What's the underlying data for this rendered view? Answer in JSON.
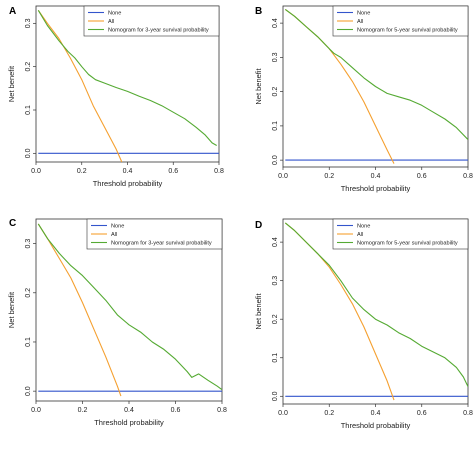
{
  "chart_data": [
    {
      "panel": "A",
      "type": "line",
      "xlabel": "Threshold probability",
      "ylabel": "Net benefit",
      "xlim": [
        0,
        0.8
      ],
      "ylim": [
        -0.02,
        0.34
      ],
      "xticks": [
        0.0,
        0.2,
        0.4,
        0.6,
        0.8
      ],
      "xtick_labels": [
        "0.0",
        "0.2",
        "0.4",
        "0.6",
        "0.8"
      ],
      "yticks": [
        0.0,
        0.1,
        0.2,
        0.3
      ],
      "ytick_labels": [
        "0.0",
        "0.1",
        "0.2",
        "0.3"
      ],
      "legend_position": "top-right",
      "series": [
        {
          "name": "None",
          "color": "#3355cc",
          "x": [
            0.01,
            0.8
          ],
          "y": [
            0.0,
            0.0
          ]
        },
        {
          "name": "All",
          "color": "#f5a030",
          "x": [
            0.01,
            0.05,
            0.1,
            0.15,
            0.2,
            0.25,
            0.3,
            0.35,
            0.375
          ],
          "y": [
            0.33,
            0.3,
            0.265,
            0.22,
            0.17,
            0.11,
            0.06,
            0.01,
            -0.02
          ]
        },
        {
          "name": "Nomogram for 3-year survival probability",
          "color": "#55aa33",
          "x": [
            0.01,
            0.05,
            0.1,
            0.14,
            0.17,
            0.2,
            0.23,
            0.26,
            0.3,
            0.35,
            0.4,
            0.45,
            0.5,
            0.55,
            0.6,
            0.65,
            0.7,
            0.74,
            0.77,
            0.79
          ],
          "y": [
            0.33,
            0.295,
            0.26,
            0.235,
            0.22,
            0.2,
            0.182,
            0.17,
            0.162,
            0.152,
            0.143,
            0.132,
            0.122,
            0.11,
            0.095,
            0.08,
            0.06,
            0.042,
            0.024,
            0.018
          ]
        }
      ]
    },
    {
      "panel": "B",
      "type": "line",
      "xlabel": "Threshold probability",
      "ylabel": "Net benefit",
      "xlim": [
        0,
        0.8
      ],
      "ylim": [
        -0.02,
        0.45
      ],
      "xticks": [
        0.0,
        0.2,
        0.4,
        0.6,
        0.8
      ],
      "xtick_labels": [
        "0.0",
        "0.2",
        "0.4",
        "0.6",
        "0.8"
      ],
      "yticks": [
        0.0,
        0.1,
        0.2,
        0.3,
        0.4
      ],
      "ytick_labels": [
        "0.0",
        "0.1",
        "0.2",
        "0.3",
        "0.4"
      ],
      "legend_position": "top-right",
      "series": [
        {
          "name": "None",
          "color": "#3355cc",
          "x": [
            0.01,
            0.8
          ],
          "y": [
            0.0,
            0.0
          ]
        },
        {
          "name": "All",
          "color": "#f5a030",
          "x": [
            0.01,
            0.05,
            0.1,
            0.15,
            0.2,
            0.25,
            0.3,
            0.35,
            0.4,
            0.45,
            0.48
          ],
          "y": [
            0.44,
            0.42,
            0.39,
            0.36,
            0.325,
            0.28,
            0.23,
            0.17,
            0.1,
            0.03,
            -0.01
          ]
        },
        {
          "name": "Nomogram for 5-year survival probability",
          "color": "#55aa33",
          "x": [
            0.01,
            0.05,
            0.1,
            0.15,
            0.2,
            0.22,
            0.25,
            0.3,
            0.35,
            0.4,
            0.45,
            0.5,
            0.55,
            0.6,
            0.65,
            0.7,
            0.75,
            0.8
          ],
          "y": [
            0.44,
            0.42,
            0.39,
            0.36,
            0.325,
            0.312,
            0.3,
            0.27,
            0.24,
            0.215,
            0.195,
            0.185,
            0.175,
            0.16,
            0.14,
            0.12,
            0.095,
            0.06
          ]
        }
      ]
    },
    {
      "panel": "C",
      "type": "line",
      "xlabel": "Threshold probability",
      "ylabel": "Net benefit",
      "xlim": [
        0,
        0.8
      ],
      "ylim": [
        -0.02,
        0.35
      ],
      "xticks": [
        0.0,
        0.2,
        0.4,
        0.6,
        0.8
      ],
      "xtick_labels": [
        "0.0",
        "0.2",
        "0.4",
        "0.6",
        "0.8"
      ],
      "yticks": [
        0.0,
        0.1,
        0.2,
        0.3
      ],
      "ytick_labels": [
        "0.0",
        "0.1",
        "0.2",
        "0.3"
      ],
      "legend_position": "top-right",
      "series": [
        {
          "name": "None",
          "color": "#3355cc",
          "x": [
            0.01,
            0.8
          ],
          "y": [
            0.0,
            0.0
          ]
        },
        {
          "name": "All",
          "color": "#f5a030",
          "x": [
            0.01,
            0.05,
            0.1,
            0.15,
            0.2,
            0.25,
            0.3,
            0.35,
            0.365
          ],
          "y": [
            0.34,
            0.31,
            0.27,
            0.23,
            0.18,
            0.125,
            0.07,
            0.01,
            -0.01
          ]
        },
        {
          "name": "Nomogram for 3-year survival probability",
          "color": "#55aa33",
          "x": [
            0.01,
            0.05,
            0.1,
            0.15,
            0.2,
            0.25,
            0.3,
            0.35,
            0.4,
            0.45,
            0.5,
            0.55,
            0.6,
            0.65,
            0.67,
            0.7,
            0.74,
            0.78,
            0.8
          ],
          "y": [
            0.34,
            0.31,
            0.28,
            0.255,
            0.235,
            0.21,
            0.185,
            0.155,
            0.135,
            0.12,
            0.1,
            0.085,
            0.065,
            0.04,
            0.028,
            0.035,
            0.022,
            0.01,
            0.003
          ]
        }
      ]
    },
    {
      "panel": "D",
      "type": "line",
      "xlabel": "Threshold probability",
      "ylabel": "Net benefit",
      "xlim": [
        0,
        0.8
      ],
      "ylim": [
        -0.02,
        0.46
      ],
      "xticks": [
        0.0,
        0.2,
        0.4,
        0.6,
        0.8
      ],
      "xtick_labels": [
        "0.0",
        "0.2",
        "0.4",
        "0.6",
        "0.8"
      ],
      "yticks": [
        0.0,
        0.1,
        0.2,
        0.3,
        0.4
      ],
      "ytick_labels": [
        "0.0",
        "0.1",
        "0.2",
        "0.3",
        "0.4"
      ],
      "legend_position": "top-right",
      "series": [
        {
          "name": "None",
          "color": "#3355cc",
          "x": [
            0.01,
            0.8
          ],
          "y": [
            0.0,
            0.0
          ]
        },
        {
          "name": "All",
          "color": "#f5a030",
          "x": [
            0.01,
            0.05,
            0.1,
            0.15,
            0.2,
            0.25,
            0.3,
            0.35,
            0.4,
            0.45,
            0.48
          ],
          "y": [
            0.45,
            0.43,
            0.4,
            0.37,
            0.335,
            0.29,
            0.24,
            0.18,
            0.11,
            0.04,
            -0.01
          ]
        },
        {
          "name": "Nomogram for 5-year survival probability",
          "color": "#55aa33",
          "x": [
            0.01,
            0.05,
            0.1,
            0.15,
            0.2,
            0.25,
            0.3,
            0.35,
            0.4,
            0.45,
            0.5,
            0.55,
            0.6,
            0.65,
            0.7,
            0.75,
            0.78,
            0.8
          ],
          "y": [
            0.45,
            0.43,
            0.4,
            0.37,
            0.34,
            0.3,
            0.255,
            0.225,
            0.2,
            0.185,
            0.165,
            0.15,
            0.13,
            0.115,
            0.1,
            0.075,
            0.05,
            0.025
          ]
        }
      ]
    }
  ]
}
